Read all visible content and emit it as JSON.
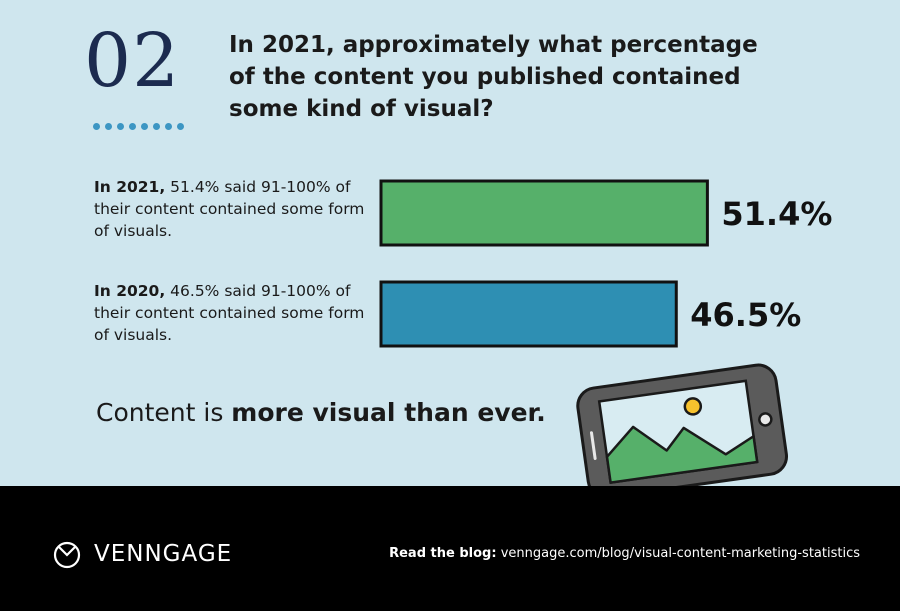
{
  "header": {
    "number": "02",
    "question": "In 2021, approximately what percentage of the content you published contained some kind of visual?"
  },
  "descriptions": [
    {
      "year": "In 2021,",
      "text": "51.4% said 91-100% of their content contained some form of visuals."
    },
    {
      "year": "In 2020,",
      "text": "46.5% said 91-100% of their content contained some form of visuals."
    }
  ],
  "tagline": {
    "prefix": "Content is",
    "bold": "more visual than ever."
  },
  "footer": {
    "logo": "VENNGAGE",
    "blog_label": "Read the blog:",
    "blog_url": "venngage.com/blog/visual-content-marketing-statistics"
  },
  "colors": {
    "bar_2021": "#56b06a",
    "bar_2020": "#2e8fb3",
    "background": "#cfe6ee",
    "dots": "#3c96c3",
    "footer": "#000000"
  },
  "icons": [
    "venngage-logo-icon",
    "smartphone-picture-icon"
  ],
  "chart_data": {
    "type": "bar",
    "orientation": "horizontal",
    "categories": [
      "2021",
      "2020"
    ],
    "values": [
      51.4,
      46.5
    ],
    "data_labels": [
      "51.4%",
      "46.5%"
    ],
    "colors": [
      "#56b06a",
      "#2e8fb3"
    ],
    "title": "In 2021, approximately what percentage of the content you published contained some kind of visual?",
    "xlabel": "",
    "ylabel": "",
    "grid": false
  }
}
